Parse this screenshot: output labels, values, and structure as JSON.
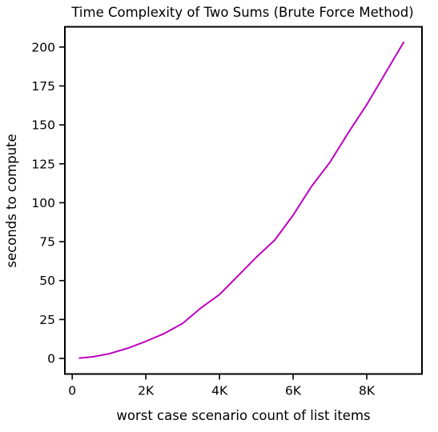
{
  "chart_data": {
    "type": "line",
    "title": "Time Complexity of Two Sums (Brute Force Method)",
    "xlabel": "worst case scenario count of list items",
    "ylabel": "seconds to compute",
    "xlim": [
      -200,
      9500
    ],
    "ylim": [
      -10,
      213
    ],
    "xticks": [
      0,
      2000,
      4000,
      6000,
      8000
    ],
    "xtick_labels": [
      "0",
      "2K",
      "4K",
      "6K",
      "8K"
    ],
    "yticks": [
      0,
      25,
      50,
      75,
      100,
      125,
      150,
      175,
      200
    ],
    "ytick_labels": [
      "0",
      "25",
      "50",
      "75",
      "100",
      "125",
      "150",
      "175",
      "200"
    ],
    "grid": false,
    "legend": false,
    "series": [
      {
        "color": "#bf00bf",
        "x": [
          200,
          600,
          1000,
          1500,
          2000,
          2500,
          3000,
          3500,
          4000,
          4500,
          5000,
          5500,
          6000,
          6500,
          7000,
          7500,
          8000,
          8500,
          9000
        ],
        "y": [
          0.2,
          1.2,
          3,
          6.5,
          11,
          16,
          22.5,
          32.5,
          41,
          53,
          65,
          76,
          92,
          110.5,
          126,
          145,
          163,
          183,
          203
        ]
      }
    ]
  }
}
